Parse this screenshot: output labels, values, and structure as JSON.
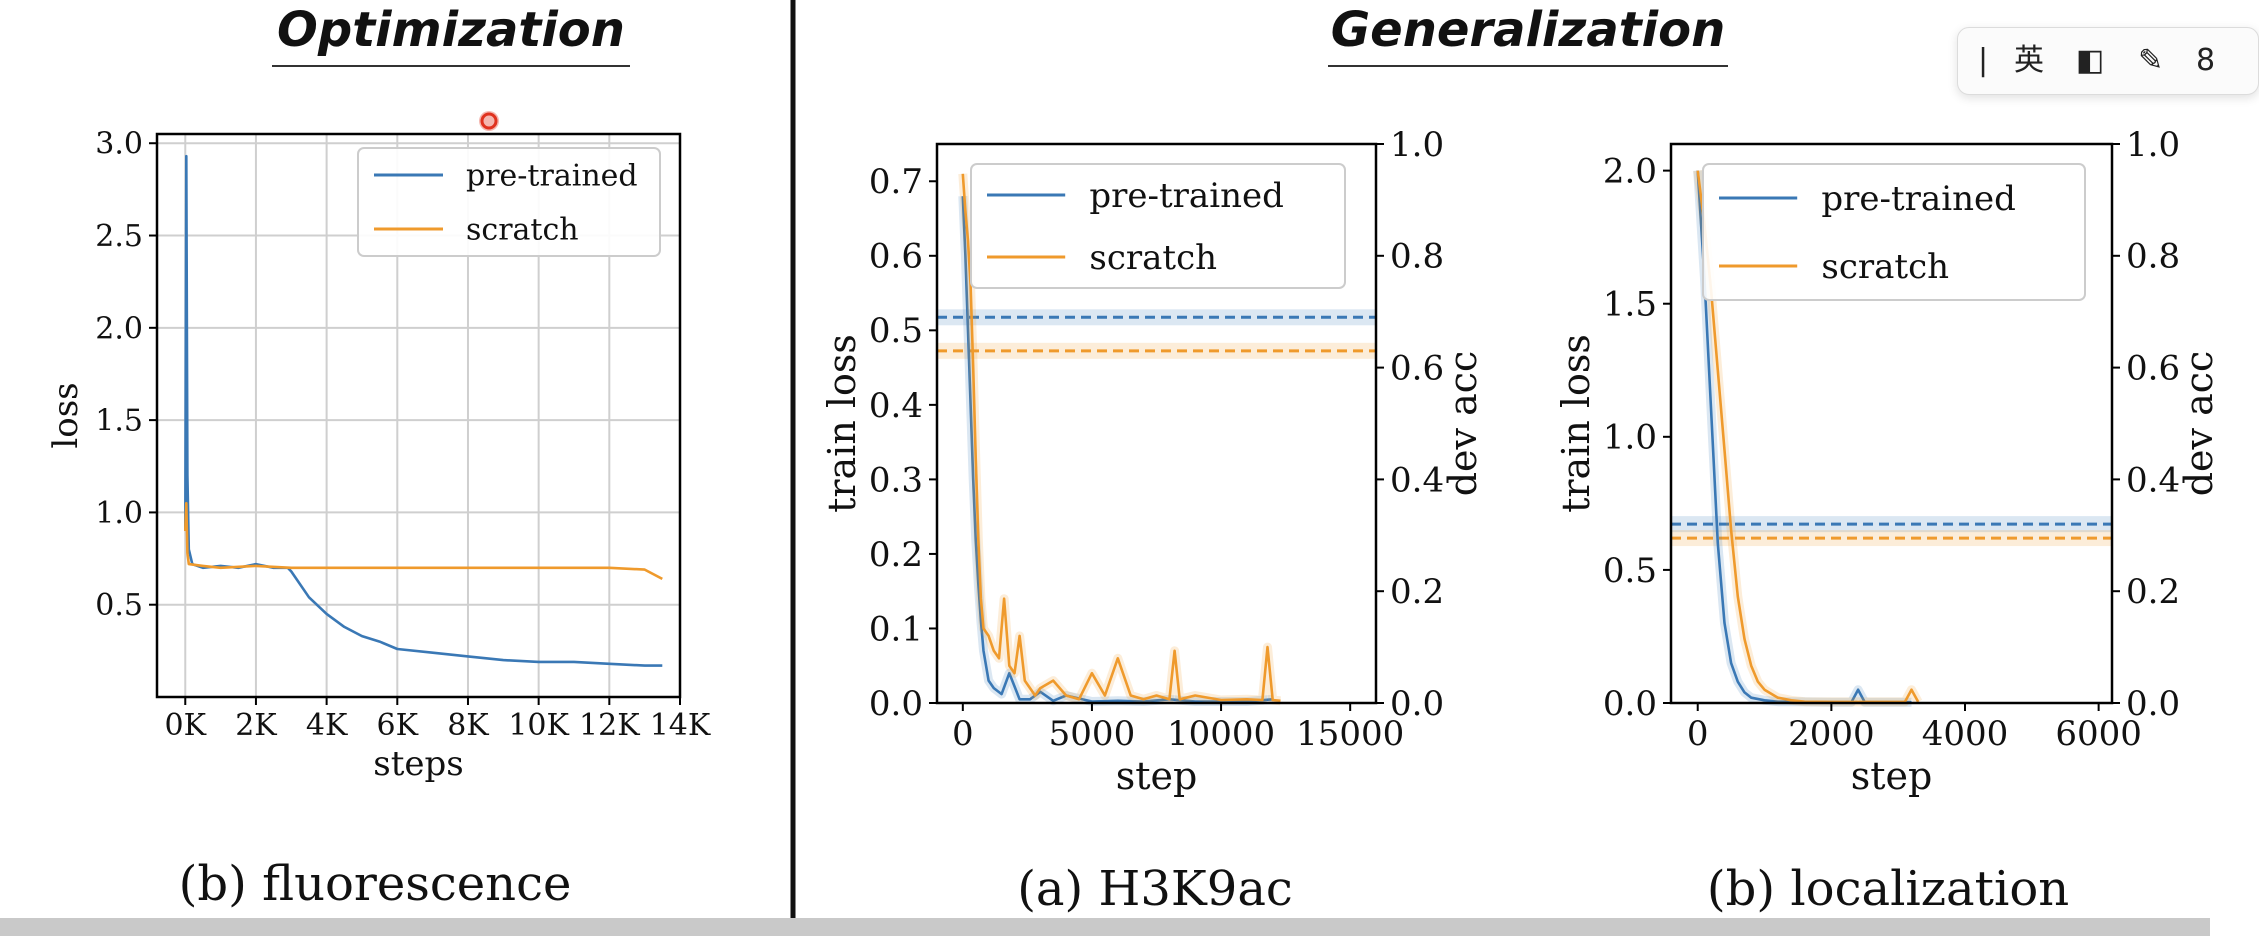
{
  "headers": {
    "left": "Optimization",
    "right": "Generalization"
  },
  "ime_toolbar": {
    "items": [
      {
        "icon": "cursor-bar-icon",
        "text": "|"
      },
      {
        "icon": "language-toggle-icon",
        "text": "英"
      },
      {
        "icon": "half-square-icon",
        "text": "◧"
      },
      {
        "icon": "brush-icon",
        "text": "✎"
      },
      {
        "icon": "more-icon",
        "text": "8"
      }
    ]
  },
  "chart_data": [
    {
      "type": "line",
      "caption": "(b) fluorescence",
      "xlabel": "steps",
      "ylabel": "loss",
      "xlim": [
        -800,
        14000
      ],
      "ylim": [
        0,
        3.05
      ],
      "xticks": [
        0,
        2000,
        4000,
        6000,
        8000,
        10000,
        12000,
        14000
      ],
      "xtick_labels": [
        "0K",
        "2K",
        "4K",
        "6K",
        "8K",
        "10K",
        "12K",
        "14K"
      ],
      "yticks": [
        0.5,
        1.0,
        1.5,
        2.0,
        2.5,
        3.0
      ],
      "ytick_labels": [
        "0.5",
        "1.0",
        "1.5",
        "2.0",
        "2.5",
        "3.0"
      ],
      "grid": true,
      "legend": "top-right",
      "series": [
        {
          "name": "pre-trained",
          "color": "#3a78b5",
          "x": [
            0,
            30,
            60,
            100,
            200,
            500,
            1000,
            1500,
            2000,
            2500,
            2900,
            3000,
            3500,
            4000,
            4500,
            5000,
            5500,
            6000,
            7000,
            8000,
            9000,
            10000,
            11000,
            12000,
            13000,
            13500
          ],
          "y": [
            0.9,
            2.93,
            1.2,
            0.8,
            0.72,
            0.7,
            0.71,
            0.7,
            0.72,
            0.7,
            0.7,
            0.68,
            0.54,
            0.45,
            0.38,
            0.33,
            0.3,
            0.26,
            0.24,
            0.22,
            0.2,
            0.19,
            0.19,
            0.18,
            0.17,
            0.17
          ]
        },
        {
          "name": "scratch",
          "color": "#ef9a2c",
          "x": [
            0,
            30,
            60,
            100,
            500,
            1000,
            2000,
            3000,
            4000,
            5000,
            6000,
            7000,
            8000,
            9000,
            10000,
            11000,
            12000,
            13000,
            13500
          ],
          "y": [
            0.9,
            1.05,
            0.78,
            0.72,
            0.71,
            0.7,
            0.71,
            0.7,
            0.7,
            0.7,
            0.7,
            0.7,
            0.7,
            0.7,
            0.7,
            0.7,
            0.7,
            0.69,
            0.64
          ]
        }
      ]
    },
    {
      "type": "line",
      "caption": "(a) H3K9ac",
      "xlabel": "step",
      "ylabel": "train loss",
      "y2label": "dev acc",
      "xlim": [
        -1000,
        16000
      ],
      "ylim": [
        0,
        0.75
      ],
      "y2lim": [
        0,
        1.0
      ],
      "xticks": [
        0,
        5000,
        10000,
        15000
      ],
      "xtick_labels": [
        "0",
        "5000",
        "10000",
        "15000"
      ],
      "yticks": [
        0,
        0.1,
        0.2,
        0.3,
        0.4,
        0.5,
        0.6,
        0.7
      ],
      "ytick_labels": [
        "0.0",
        "0.1",
        "0.2",
        "0.3",
        "0.4",
        "0.5",
        "0.6",
        "0.7"
      ],
      "y2ticks": [
        0,
        0.2,
        0.4,
        0.6,
        0.8,
        1.0
      ],
      "y2tick_labels": [
        "0.0",
        "0.2",
        "0.4",
        "0.6",
        "0.8",
        "1.0"
      ],
      "grid": false,
      "legend": "top-right",
      "hlines": [
        {
          "series": "pre-trained",
          "y2": 0.69
        },
        {
          "series": "scratch",
          "y2": 0.63
        }
      ],
      "series": [
        {
          "name": "pre-trained",
          "color": "#3a78b5",
          "x": [
            0,
            100,
            200,
            300,
            400,
            500,
            600,
            700,
            800,
            1000,
            1200,
            1500,
            1800,
            2200,
            2600,
            3000,
            3500,
            4000,
            5000,
            6000,
            7000,
            8000,
            9000,
            10000,
            11000,
            12000
          ],
          "y": [
            0.68,
            0.6,
            0.5,
            0.4,
            0.3,
            0.22,
            0.16,
            0.11,
            0.07,
            0.03,
            0.02,
            0.012,
            0.04,
            0.005,
            0.005,
            0.015,
            0.003,
            0.01,
            0.002,
            0.003,
            0.002,
            0.005,
            0.002,
            0.002,
            0.002,
            0.005
          ]
        },
        {
          "name": "scratch",
          "color": "#ef9a2c",
          "x": [
            0,
            100,
            200,
            300,
            400,
            500,
            600,
            700,
            800,
            1000,
            1200,
            1400,
            1600,
            1800,
            2000,
            2200,
            2400,
            2600,
            2800,
            3000,
            3500,
            4000,
            4500,
            5000,
            5500,
            6000,
            6500,
            7000,
            7500,
            8000,
            8200,
            8400,
            9000,
            10000,
            11000,
            11600,
            11800,
            12000,
            12300
          ],
          "y": [
            0.71,
            0.66,
            0.62,
            0.56,
            0.45,
            0.33,
            0.22,
            0.14,
            0.1,
            0.09,
            0.07,
            0.06,
            0.14,
            0.05,
            0.04,
            0.09,
            0.03,
            0.02,
            0.01,
            0.02,
            0.03,
            0.01,
            0.005,
            0.04,
            0.01,
            0.06,
            0.01,
            0.005,
            0.01,
            0.005,
            0.07,
            0.005,
            0.01,
            0.004,
            0.005,
            0.004,
            0.075,
            0.004,
            0.003
          ]
        }
      ]
    },
    {
      "type": "line",
      "caption": "(b) localization",
      "xlabel": "step",
      "ylabel": "train loss",
      "y2label": "dev acc",
      "xlim": [
        -400,
        6200
      ],
      "ylim": [
        0,
        2.1
      ],
      "y2lim": [
        0,
        1.0
      ],
      "xticks": [
        0,
        2000,
        4000,
        6000
      ],
      "xtick_labels": [
        "0",
        "2000",
        "4000",
        "6000"
      ],
      "yticks": [
        0,
        0.5,
        1.0,
        1.5,
        2.0
      ],
      "ytick_labels": [
        "0.0",
        "0.5",
        "1.0",
        "1.5",
        "2.0"
      ],
      "y2ticks": [
        0,
        0.2,
        0.4,
        0.6,
        0.8,
        1.0
      ],
      "y2tick_labels": [
        "0.0",
        "0.2",
        "0.4",
        "0.6",
        "0.8",
        "1.0"
      ],
      "grid": false,
      "legend": "top-right",
      "hlines": [
        {
          "series": "pre-trained",
          "y2": 0.32
        },
        {
          "series": "scratch",
          "y2": 0.295
        }
      ],
      "series": [
        {
          "name": "pre-trained",
          "color": "#3a78b5",
          "x": [
            0,
            100,
            200,
            300,
            400,
            500,
            600,
            700,
            800,
            1000,
            1200,
            1400,
            1600,
            2000,
            2300,
            2400,
            2500,
            2800,
            3200
          ],
          "y": [
            2.0,
            1.6,
            1.1,
            0.6,
            0.3,
            0.15,
            0.08,
            0.04,
            0.02,
            0.01,
            0.005,
            0.005,
            0.004,
            0.003,
            0.003,
            0.05,
            0.003,
            0.003,
            0.003
          ]
        },
        {
          "name": "scratch",
          "color": "#ef9a2c",
          "x": [
            0,
            100,
            200,
            300,
            400,
            500,
            600,
            700,
            800,
            900,
            1000,
            1100,
            1200,
            1400,
            1600,
            2000,
            2400,
            2800,
            3100,
            3200,
            3300
          ],
          "y": [
            2.0,
            1.8,
            1.55,
            1.25,
            0.95,
            0.65,
            0.4,
            0.24,
            0.14,
            0.08,
            0.05,
            0.035,
            0.02,
            0.01,
            0.005,
            0.004,
            0.004,
            0.004,
            0.004,
            0.05,
            0.004
          ]
        }
      ]
    }
  ]
}
